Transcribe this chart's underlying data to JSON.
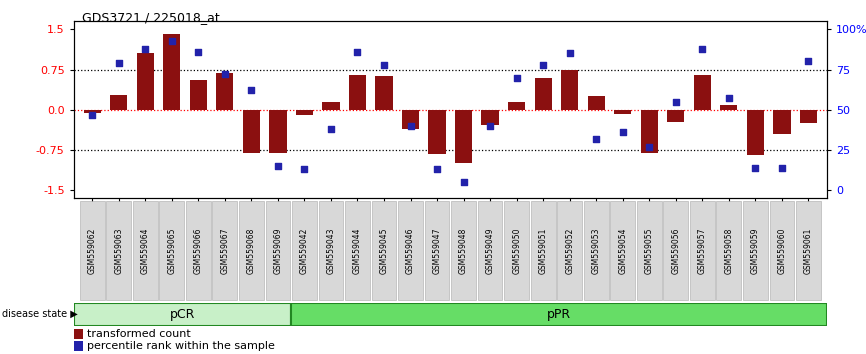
{
  "title": "GDS3721 / 225018_at",
  "samples": [
    "GSM559062",
    "GSM559063",
    "GSM559064",
    "GSM559065",
    "GSM559066",
    "GSM559067",
    "GSM559068",
    "GSM559069",
    "GSM559042",
    "GSM559043",
    "GSM559044",
    "GSM559045",
    "GSM559046",
    "GSM559047",
    "GSM559048",
    "GSM559049",
    "GSM559050",
    "GSM559051",
    "GSM559052",
    "GSM559053",
    "GSM559054",
    "GSM559055",
    "GSM559056",
    "GSM559057",
    "GSM559058",
    "GSM559059",
    "GSM559060",
    "GSM559061"
  ],
  "transformed_count": [
    -0.07,
    0.28,
    1.05,
    1.42,
    0.55,
    0.68,
    -0.8,
    -0.8,
    -0.1,
    0.15,
    0.65,
    0.63,
    -0.35,
    -0.83,
    -1.0,
    -0.28,
    0.15,
    0.6,
    0.75,
    0.25,
    -0.08,
    -0.8,
    -0.22,
    0.65,
    0.08,
    -0.85,
    -0.45,
    -0.25
  ],
  "percentile_rank": [
    47,
    79,
    88,
    93,
    86,
    72,
    62,
    15,
    13,
    38,
    86,
    78,
    40,
    13,
    5,
    40,
    70,
    78,
    85,
    32,
    36,
    27,
    55,
    88,
    57,
    14,
    14,
    80
  ],
  "pcr_count": 8,
  "bar_color": "#8B1010",
  "dot_color": "#2222AA",
  "yticks_left": [
    -1.5,
    -0.75,
    0.0,
    0.75,
    1.5
  ],
  "yticks_right": [
    0,
    25,
    50,
    75,
    100
  ],
  "ylim": [
    -1.65,
    1.65
  ],
  "hline_values": [
    -0.75,
    0.0,
    0.75
  ],
  "pcr_color": "#c8f0c8",
  "ppr_color": "#66dd66",
  "tick_label_bg": "#d8d8d8"
}
